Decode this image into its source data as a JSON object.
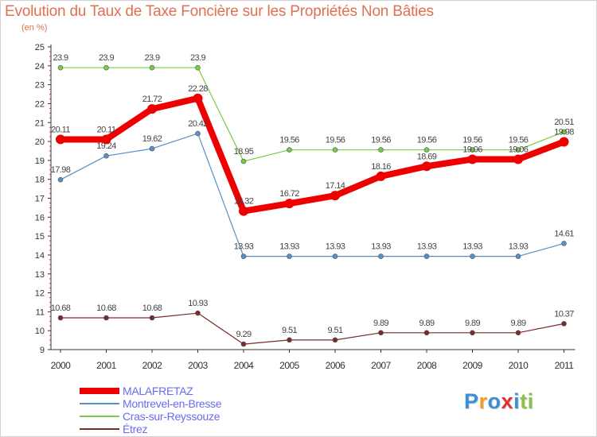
{
  "title": "Evolution du Taux de Taxe Foncière sur les Propriétés Non Bâties",
  "subtitle": "(en %)",
  "chart_data": {
    "type": "line",
    "title": "Evolution du Taux de Taxe Foncière sur les Propriétés Non Bâties",
    "ylabel": "(en %)",
    "xlabel": "",
    "ylim": [
      9,
      25
    ],
    "yticks": [
      "9",
      "10",
      "11",
      "12",
      "13",
      "14",
      "15",
      "16",
      "17",
      "18",
      "19",
      "20",
      "21",
      "22",
      "23",
      "24",
      "25"
    ],
    "categories": [
      "2000",
      "2001",
      "2002",
      "2003",
      "2004",
      "2005",
      "2006",
      "2007",
      "2008",
      "2009",
      "2010",
      "2011"
    ],
    "grid": false,
    "legend_position": "bottom-left",
    "series": [
      {
        "name": "MALAFRETAZ",
        "color": "#ee0000",
        "values": [
          20.11,
          20.11,
          21.72,
          22.28,
          16.32,
          16.72,
          17.14,
          18.16,
          18.69,
          19.06,
          19.06,
          19.98
        ],
        "labels": [
          "20.11",
          "20.11",
          "21.72",
          "22.28",
          "16.32",
          "16.72",
          "17.14",
          "18.16",
          "18.69",
          "19.06",
          "19.06",
          "19.98"
        ]
      },
      {
        "name": "Montrevel-en-Bresse",
        "color": "#5590c8",
        "values": [
          17.98,
          19.24,
          19.62,
          20.42,
          13.93,
          13.93,
          13.93,
          13.93,
          13.93,
          13.93,
          13.93,
          14.61
        ],
        "labels": [
          "17.98",
          "19.24",
          "19.62",
          "20.42",
          "13.93",
          "13.93",
          "13.93",
          "13.93",
          "13.93",
          "13.93",
          "13.93",
          "14.61"
        ]
      },
      {
        "name": "Cras-sur-Reyssouze",
        "color": "#77cc44",
        "values": [
          23.9,
          23.9,
          23.9,
          23.9,
          18.95,
          19.56,
          19.56,
          19.56,
          19.56,
          19.56,
          19.56,
          20.51
        ],
        "labels": [
          "23.9",
          "23.9",
          "23.9",
          "23.9",
          "18.95",
          "19.56",
          "19.56",
          "19.56",
          "19.56",
          "19.56",
          "19.56",
          "20.51"
        ]
      },
      {
        "name": "Étrez",
        "color": "#7a2a2a",
        "values": [
          10.68,
          10.68,
          10.68,
          10.93,
          9.29,
          9.51,
          9.51,
          9.89,
          9.89,
          9.89,
          9.89,
          10.37
        ],
        "labels": [
          "10.68",
          "10.68",
          "10.68",
          "10.93",
          "9.29",
          "9.51",
          "9.51",
          "9.89",
          "9.89",
          "9.89",
          "9.89",
          "10.37"
        ]
      }
    ]
  },
  "logo": {
    "text": "Proxiti",
    "letters": [
      {
        "ch": "P",
        "color": "#3a8fd8"
      },
      {
        "ch": "r",
        "color": "#f0a020"
      },
      {
        "ch": "o",
        "color": "#3a8fd8"
      },
      {
        "ch": "x",
        "color": "#e03030"
      },
      {
        "ch": "i",
        "color": "#3a8fd8"
      },
      {
        "ch": "t",
        "color": "#8bc34a"
      },
      {
        "ch": "i",
        "color": "#8bc34a"
      }
    ]
  }
}
